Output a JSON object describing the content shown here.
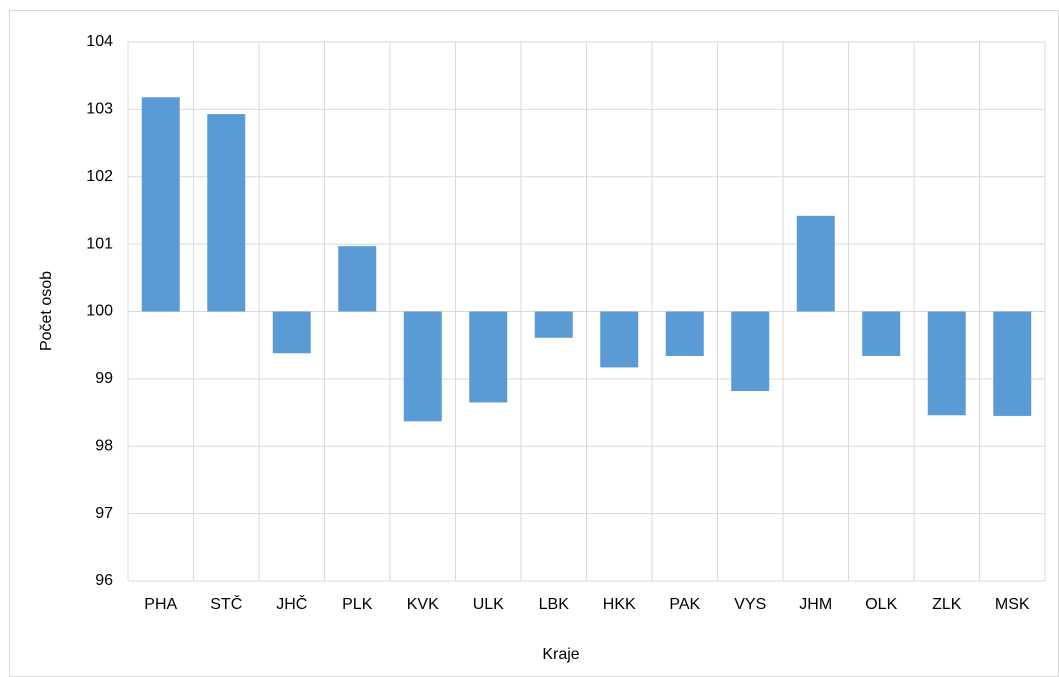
{
  "chart_data": {
    "type": "bar",
    "categories": [
      "PHA",
      "STČ",
      "JHČ",
      "PLK",
      "KVK",
      "ULK",
      "LBK",
      "HKK",
      "PAK",
      "VYS",
      "JHM",
      "OLK",
      "ZLK",
      "MSK"
    ],
    "values": [
      103.18,
      102.93,
      99.38,
      100.97,
      98.37,
      98.65,
      99.61,
      99.17,
      99.34,
      98.82,
      101.42,
      99.34,
      98.46,
      98.45
    ],
    "color": "#5b9bd5",
    "baseline": 100,
    "ylim": [
      96,
      104
    ],
    "yticks": [
      96,
      97,
      98,
      99,
      100,
      101,
      102,
      103,
      104
    ],
    "grid": true,
    "xlabel": "Kraje",
    "ylabel": "Počet osob"
  }
}
